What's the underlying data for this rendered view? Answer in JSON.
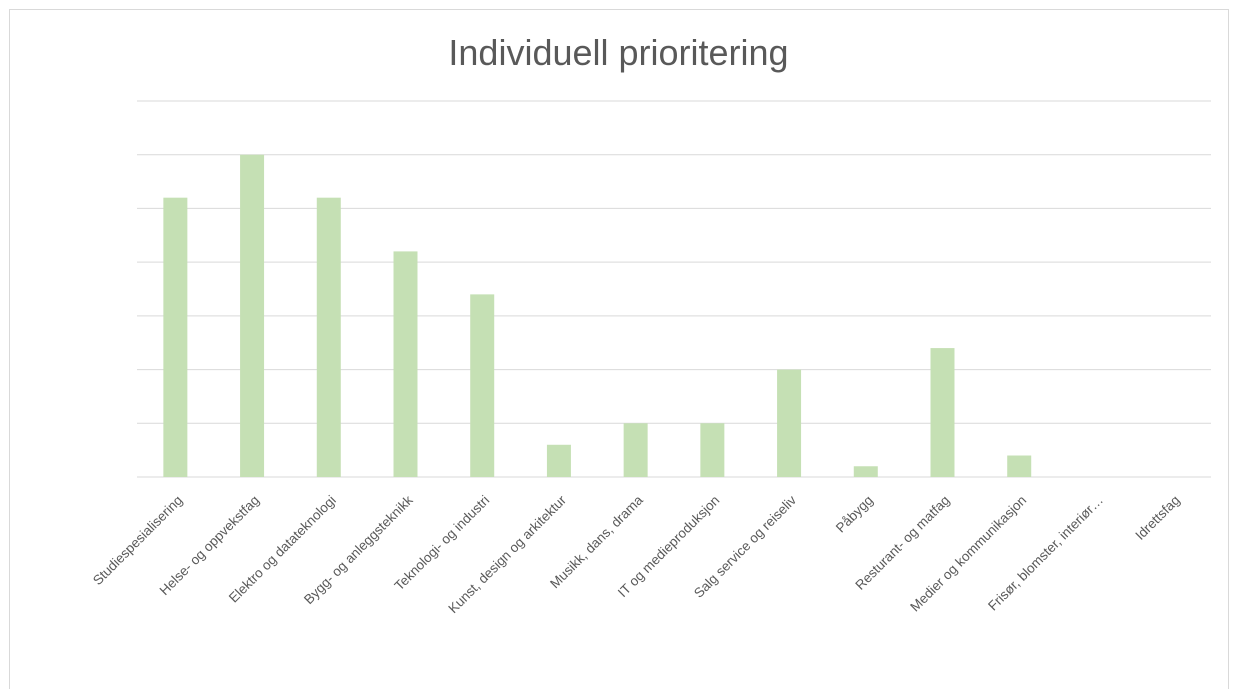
{
  "chart_data": {
    "type": "bar",
    "title": "Individuell prioritering",
    "xlabel": "",
    "ylabel": "",
    "categories": [
      "Studiespesialisering",
      "Helse- og oppvekstfag",
      "Elektro og datateknologi",
      "Bygg- og anleggsteknikk",
      "Teknologi- og industri",
      "Kunst, design og arkitektur",
      "Musikk, dans, drama",
      "IT og medieproduksjon",
      "Salg service og reiseliv",
      "Påbygg",
      "Resturant- og matfag",
      "Medier og kommunikasjon",
      "Frisør, blomster, interiør…",
      "Idrettsfag"
    ],
    "values": [
      5.2,
      6,
      5.2,
      4.2,
      3.4,
      0.6,
      1,
      1,
      2,
      0.2,
      2.4,
      0.4,
      0,
      0
    ],
    "ylim": [
      0,
      7
    ],
    "grid": true,
    "y_tick_labels_shown": false,
    "bar_color": "#c5e0b4",
    "gridline_color": "#d9d9d9",
    "label_color": "#595959"
  }
}
